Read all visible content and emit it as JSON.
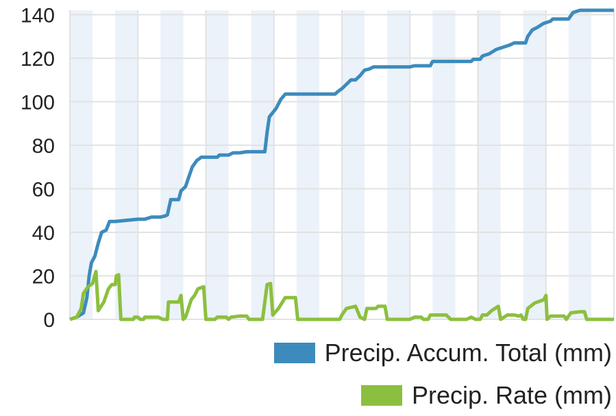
{
  "chart_data": {
    "type": "line",
    "title": "",
    "xlabel": "",
    "ylabel": "",
    "ylim": [
      0,
      142
    ],
    "yticks": [
      0,
      20,
      40,
      60,
      80,
      100,
      120,
      140
    ],
    "grid": true,
    "legend_position": "bottom-right",
    "x_count": 24,
    "series": [
      {
        "name": "Precip. Accum. Total (mm)",
        "color": "#3d8bbd",
        "points": [
          [
            0,
            0
          ],
          [
            0.3,
            1
          ],
          [
            0.6,
            3
          ],
          [
            0.75,
            10
          ],
          [
            0.85,
            20
          ],
          [
            0.95,
            26
          ],
          [
            1.1,
            29
          ],
          [
            1.25,
            35
          ],
          [
            1.4,
            40
          ],
          [
            1.6,
            41
          ],
          [
            1.75,
            45
          ],
          [
            2,
            45
          ],
          [
            2.5,
            45.5
          ],
          [
            3,
            46
          ],
          [
            3.3,
            46
          ],
          [
            3.6,
            47
          ],
          [
            4,
            47
          ],
          [
            4.2,
            47.5
          ],
          [
            4.3,
            48
          ],
          [
            4.45,
            55
          ],
          [
            4.8,
            55
          ],
          [
            4.9,
            59
          ],
          [
            5.1,
            61
          ],
          [
            5.2,
            64
          ],
          [
            5.4,
            70
          ],
          [
            5.6,
            73
          ],
          [
            5.8,
            74.5
          ],
          [
            6,
            74.5
          ],
          [
            6.5,
            74.5
          ],
          [
            6.6,
            75.5
          ],
          [
            7,
            75.5
          ],
          [
            7.2,
            76.5
          ],
          [
            7.5,
            76.5
          ],
          [
            7.8,
            77
          ],
          [
            8.6,
            77
          ],
          [
            8.7,
            86
          ],
          [
            8.8,
            93
          ],
          [
            8.95,
            95
          ],
          [
            9.1,
            97
          ],
          [
            9.3,
            101
          ],
          [
            9.5,
            103.5
          ],
          [
            10,
            103.5
          ],
          [
            11,
            103.5
          ],
          [
            11.7,
            103.5
          ],
          [
            11.8,
            104.5
          ],
          [
            12,
            106
          ],
          [
            12.2,
            108
          ],
          [
            12.4,
            110
          ],
          [
            12.6,
            110
          ],
          [
            12.8,
            112
          ],
          [
            13,
            114.5
          ],
          [
            13.2,
            115
          ],
          [
            13.4,
            116
          ],
          [
            14,
            116
          ],
          [
            15,
            116
          ],
          [
            15.2,
            116.5
          ],
          [
            15.9,
            116.5
          ],
          [
            16,
            118.5
          ],
          [
            17,
            118.5
          ],
          [
            17.7,
            118.5
          ],
          [
            17.8,
            119.5
          ],
          [
            18.1,
            119.5
          ],
          [
            18.2,
            121
          ],
          [
            18.5,
            122
          ],
          [
            18.8,
            124
          ],
          [
            19.1,
            125
          ],
          [
            19.4,
            126
          ],
          [
            19.6,
            127
          ],
          [
            19.8,
            127
          ],
          [
            20.1,
            127
          ],
          [
            20.2,
            130
          ],
          [
            20.4,
            133
          ],
          [
            20.6,
            134
          ],
          [
            20.9,
            136
          ],
          [
            21.2,
            137
          ],
          [
            21.3,
            138
          ],
          [
            22,
            138
          ],
          [
            22.2,
            141
          ],
          [
            22.5,
            142
          ],
          [
            23,
            142
          ],
          [
            24,
            142
          ]
        ]
      },
      {
        "name": "Precip. Rate (mm)",
        "color": "#8cbf3f",
        "points": [
          [
            0,
            0
          ],
          [
            0.3,
            1
          ],
          [
            0.5,
            5
          ],
          [
            0.6,
            12
          ],
          [
            0.8,
            15
          ],
          [
            1,
            16.5
          ],
          [
            1.15,
            22
          ],
          [
            1.25,
            4
          ],
          [
            1.5,
            8
          ],
          [
            1.7,
            14
          ],
          [
            1.85,
            16
          ],
          [
            2,
            16
          ],
          [
            2.05,
            20
          ],
          [
            2.15,
            20.5
          ],
          [
            2.25,
            0
          ],
          [
            2.5,
            0
          ],
          [
            2.8,
            0
          ],
          [
            2.85,
            1
          ],
          [
            3,
            1
          ],
          [
            3.1,
            0
          ],
          [
            3.25,
            0
          ],
          [
            3.3,
            1
          ],
          [
            3.9,
            1
          ],
          [
            4.1,
            0
          ],
          [
            4.3,
            0
          ],
          [
            4.35,
            8
          ],
          [
            4.8,
            8
          ],
          [
            4.9,
            11
          ],
          [
            5.0,
            0
          ],
          [
            5.1,
            1
          ],
          [
            5.2,
            4
          ],
          [
            5.35,
            9
          ],
          [
            5.5,
            11
          ],
          [
            5.65,
            14
          ],
          [
            5.9,
            15
          ],
          [
            6.0,
            0
          ],
          [
            6.4,
            0
          ],
          [
            6.5,
            1
          ],
          [
            6.9,
            1
          ],
          [
            7.0,
            0
          ],
          [
            7.1,
            1
          ],
          [
            7.5,
            1.5
          ],
          [
            7.8,
            1.5
          ],
          [
            7.9,
            0
          ],
          [
            8.5,
            0
          ],
          [
            8.6,
            8
          ],
          [
            8.7,
            16
          ],
          [
            8.85,
            16.5
          ],
          [
            8.95,
            2
          ],
          [
            9.2,
            5
          ],
          [
            9.5,
            10
          ],
          [
            9.95,
            10
          ],
          [
            10.05,
            0
          ],
          [
            11,
            0
          ],
          [
            11.9,
            0
          ],
          [
            12.0,
            2
          ],
          [
            12.2,
            5
          ],
          [
            12.4,
            5.5
          ],
          [
            12.6,
            6
          ],
          [
            12.8,
            1
          ],
          [
            13.0,
            0
          ],
          [
            13.1,
            5
          ],
          [
            13.5,
            5
          ],
          [
            13.6,
            6
          ],
          [
            13.9,
            6
          ],
          [
            14.0,
            0
          ],
          [
            15,
            0
          ],
          [
            15.2,
            1
          ],
          [
            15.5,
            1
          ],
          [
            15.6,
            0
          ],
          [
            15.8,
            0
          ],
          [
            15.9,
            2
          ],
          [
            16.4,
            2
          ],
          [
            16.6,
            2
          ],
          [
            16.8,
            0
          ],
          [
            17.5,
            0
          ],
          [
            17.7,
            1
          ],
          [
            17.9,
            0
          ],
          [
            18.1,
            0
          ],
          [
            18.2,
            2
          ],
          [
            18.4,
            2
          ],
          [
            18.6,
            4
          ],
          [
            18.9,
            6
          ],
          [
            19.0,
            0
          ],
          [
            19.3,
            2
          ],
          [
            19.6,
            2
          ],
          [
            19.8,
            1.5
          ],
          [
            19.9,
            2
          ],
          [
            20.0,
            0
          ],
          [
            20.1,
            0
          ],
          [
            20.2,
            5
          ],
          [
            20.5,
            7.5
          ],
          [
            20.9,
            9
          ],
          [
            21.0,
            11
          ],
          [
            21.05,
            0
          ],
          [
            21.2,
            1.5
          ],
          [
            21.8,
            1.5
          ],
          [
            21.9,
            0
          ],
          [
            22.1,
            3
          ],
          [
            22.5,
            3.5
          ],
          [
            22.7,
            3.5
          ],
          [
            22.8,
            0
          ],
          [
            23.5,
            0
          ],
          [
            24,
            0
          ]
        ]
      }
    ]
  }
}
